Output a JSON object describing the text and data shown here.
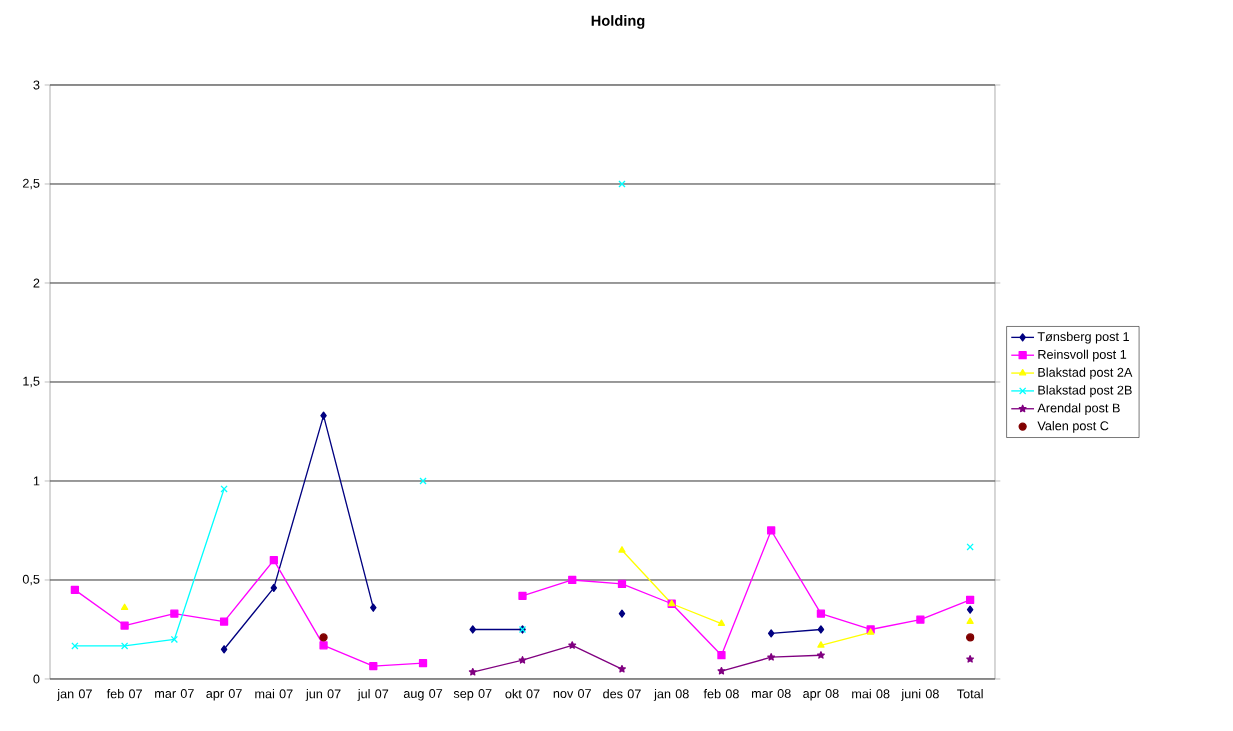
{
  "chart_data": {
    "type": "line",
    "title": "Holding",
    "categories": [
      "jan 07",
      "feb 07",
      "mar 07",
      "apr 07",
      "mai 07",
      "jun 07",
      "jul 07",
      "aug 07",
      "sep 07",
      "okt 07",
      "nov 07",
      "des 07",
      "jan 08",
      "feb 08",
      "mar 08",
      "apr 08",
      "mai 08",
      "juni 08",
      "Total"
    ],
    "ylim": [
      0,
      3
    ],
    "yticks": [
      0,
      {
        "value": 0.5,
        "label": "0,5"
      },
      1,
      {
        "value": 1.5,
        "label": "1,5"
      },
      2,
      {
        "value": 2.5,
        "label": "2,5"
      },
      3
    ],
    "grid": "y",
    "legend": "right",
    "series": [
      {
        "name": "Tønsberg post 1",
        "color": "#000080",
        "marker": "diamond",
        "values": [
          null,
          null,
          null,
          0.15,
          0.46,
          1.33,
          0.36,
          null,
          0.25,
          0.25,
          null,
          0.33,
          null,
          null,
          0.23,
          0.25,
          null,
          null,
          0.35
        ]
      },
      {
        "name": "Reinsvoll post 1",
        "color": "#ff00ff",
        "marker": "square",
        "values": [
          0.45,
          0.27,
          0.33,
          0.29,
          0.6,
          0.17,
          0.065,
          0.08,
          null,
          0.42,
          0.5,
          0.48,
          0.38,
          0.12,
          0.75,
          0.33,
          0.25,
          0.3,
          0.4
        ]
      },
      {
        "name": "Blakstad post 2A",
        "color": "#ffff00",
        "marker": "triangle",
        "values": [
          null,
          0.36,
          null,
          null,
          null,
          null,
          null,
          null,
          null,
          null,
          null,
          0.65,
          0.38,
          0.28,
          null,
          0.17,
          0.235,
          null,
          0.29
        ]
      },
      {
        "name": "Blakstad post 2B",
        "color": "#00ffff",
        "marker": "cross",
        "values": [
          0.167,
          0.167,
          0.2,
          0.96,
          null,
          null,
          null,
          1.0,
          null,
          0.25,
          null,
          2.5,
          null,
          null,
          null,
          null,
          null,
          null,
          0.667
        ]
      },
      {
        "name": "Arendal post B",
        "color": "#800080",
        "marker": "star",
        "values": [
          null,
          null,
          null,
          null,
          null,
          null,
          null,
          null,
          0.035,
          0.095,
          0.17,
          0.05,
          null,
          0.04,
          0.11,
          0.12,
          null,
          null,
          0.1
        ]
      },
      {
        "name": "Valen post C",
        "type": "scatter",
        "color": "#800000",
        "marker": "circle",
        "values": [
          null,
          null,
          null,
          null,
          null,
          0.21,
          null,
          null,
          null,
          null,
          null,
          null,
          null,
          null,
          null,
          null,
          null,
          null,
          0.21
        ]
      }
    ]
  }
}
